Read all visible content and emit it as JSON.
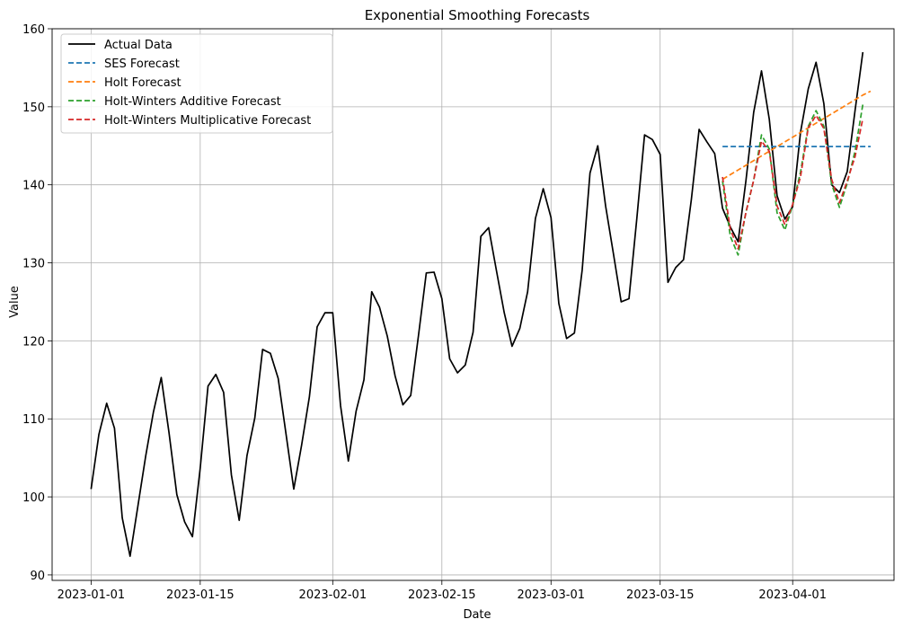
{
  "chart_data": {
    "type": "line",
    "title": "Exponential Smoothing Forecasts",
    "xlabel": "Date",
    "ylabel": "Value",
    "grid": true,
    "legend_position": "top-left",
    "x_start": "2023-01-01",
    "ylim": [
      89.3,
      160
    ],
    "y_ticks": [
      90,
      100,
      110,
      120,
      130,
      140,
      150,
      160
    ],
    "x_ticks": [
      "2023-01-01",
      "2023-01-15",
      "2023-02-01",
      "2023-02-15",
      "2023-03-01",
      "2023-03-15",
      "2023-04-01"
    ],
    "x_tick_labels": [
      "2023-01-01",
      "2023-01-15",
      "2023-02-01",
      "2023-02-15",
      "2023-03-01",
      "2023-03-15",
      "2023-04-01"
    ],
    "xlim": [
      "2022-12-27",
      "2023-04-14"
    ],
    "series": [
      {
        "name": "Actual Data",
        "color": "#000000",
        "dash": "solid",
        "start": "2023-01-01",
        "values": [
          101.0,
          108.0,
          112.0,
          108.8,
          97.3,
          92.4,
          98.8,
          105.2,
          110.9,
          115.3,
          108.2,
          100.3,
          96.8,
          94.9,
          103.7,
          114.2,
          115.7,
          113.4,
          102.8,
          97.0,
          105.3,
          110.1,
          118.9,
          118.4,
          115.2,
          108.1,
          101.0,
          106.6,
          112.8,
          121.8,
          123.6,
          123.6,
          111.7,
          104.6,
          111.0,
          115.0,
          126.3,
          124.3,
          120.6,
          115.5,
          111.8,
          113.0,
          120.7,
          128.7,
          128.8,
          125.4,
          117.7,
          115.9,
          116.9,
          121.1,
          133.4,
          134.5,
          129.0,
          123.6,
          119.3,
          121.6,
          126.3,
          135.7,
          139.5,
          135.8,
          124.8,
          120.3,
          121.0,
          129.1,
          141.5,
          145.0,
          137.3,
          131.2,
          125.0,
          125.4,
          135.6,
          146.4,
          145.8,
          143.9,
          127.5,
          129.4,
          130.4,
          138.1,
          147.1,
          145.5,
          144.0,
          137.0,
          134.6,
          132.7,
          140.5,
          149.3,
          154.6,
          148.4,
          138.6,
          135.6,
          137.2,
          146.7,
          152.3,
          155.7,
          150.4,
          140.0,
          139.0,
          141.7,
          149.5,
          157.0
        ]
      },
      {
        "name": "SES Forecast",
        "color": "#1f77b4",
        "dash": "dashed",
        "start": "2023-03-23",
        "values": [
          144.9,
          144.9,
          144.9,
          144.9,
          144.9,
          144.9,
          144.9,
          144.9,
          144.9,
          144.9,
          144.9,
          144.9,
          144.9,
          144.9,
          144.9,
          144.9,
          144.9,
          144.9,
          144.9,
          144.9
        ]
      },
      {
        "name": "Holt Forecast",
        "color": "#ff7f0e",
        "dash": "dashed",
        "start": "2023-03-23",
        "values": [
          140.7,
          141.3,
          141.9,
          142.5,
          143.1,
          143.7,
          144.3,
          144.9,
          145.5,
          146.1,
          146.7,
          147.3,
          147.9,
          148.5,
          149.1,
          149.7,
          150.3,
          150.9,
          151.5,
          152.0
        ]
      },
      {
        "name": "Holt-Winters Additive Forecast",
        "color": "#2ca02c",
        "dash": "dashed",
        "start": "2023-03-23",
        "values": [
          140.5,
          133.4,
          131.0,
          136.5,
          140.6,
          146.4,
          144.6,
          136.4,
          134.2,
          137.4,
          141.6,
          147.5,
          149.5,
          147.5,
          140.1,
          137.1,
          140.2,
          144.3,
          150.3
        ]
      },
      {
        "name": "Holt-Winters Multiplicative Forecast",
        "color": "#d62728",
        "dash": "dashed",
        "start": "2023-03-23",
        "values": [
          141.0,
          134.3,
          131.8,
          136.4,
          140.6,
          145.6,
          144.3,
          137.3,
          134.9,
          137.5,
          141.0,
          147.3,
          148.9,
          147.2,
          140.7,
          137.7,
          140.5,
          143.6,
          148.5
        ]
      }
    ]
  }
}
